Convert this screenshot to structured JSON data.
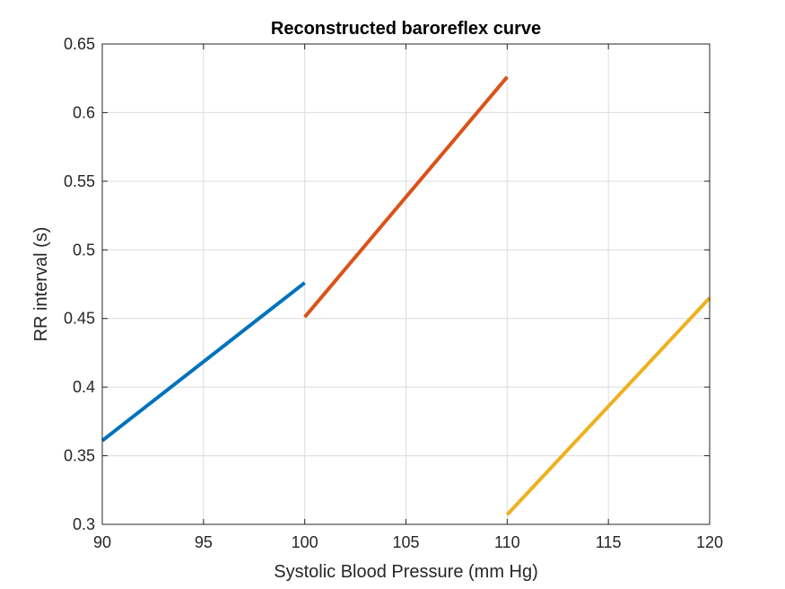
{
  "chart_data": {
    "type": "line",
    "title": "Reconstructed baroreflex curve",
    "xlabel": "Systolic Blood Pressure (mm Hg)",
    "ylabel": "RR interval (s)",
    "xlim": [
      90,
      120
    ],
    "ylim": [
      0.3,
      0.65
    ],
    "xticks": [
      90,
      95,
      100,
      105,
      110,
      115,
      120
    ],
    "yticks": [
      0.3,
      0.35,
      0.4,
      0.45,
      0.5,
      0.55,
      0.6,
      0.65
    ],
    "xtick_labels": [
      "90",
      "95",
      "100",
      "105",
      "110",
      "115",
      "120"
    ],
    "ytick_labels": [
      "0.3",
      "0.35",
      "0.4",
      "0.45",
      "0.5",
      "0.55",
      "0.6",
      "0.65"
    ],
    "grid": true,
    "legend": false,
    "series": [
      {
        "color": "#0072BD",
        "x": [
          90,
          100
        ],
        "y": [
          0.361,
          0.476
        ]
      },
      {
        "color": "#D95319",
        "x": [
          100,
          110
        ],
        "y": [
          0.451,
          0.626
        ]
      },
      {
        "color": "#EDB120",
        "x": [
          110,
          120
        ],
        "y": [
          0.307,
          0.465
        ]
      }
    ]
  }
}
